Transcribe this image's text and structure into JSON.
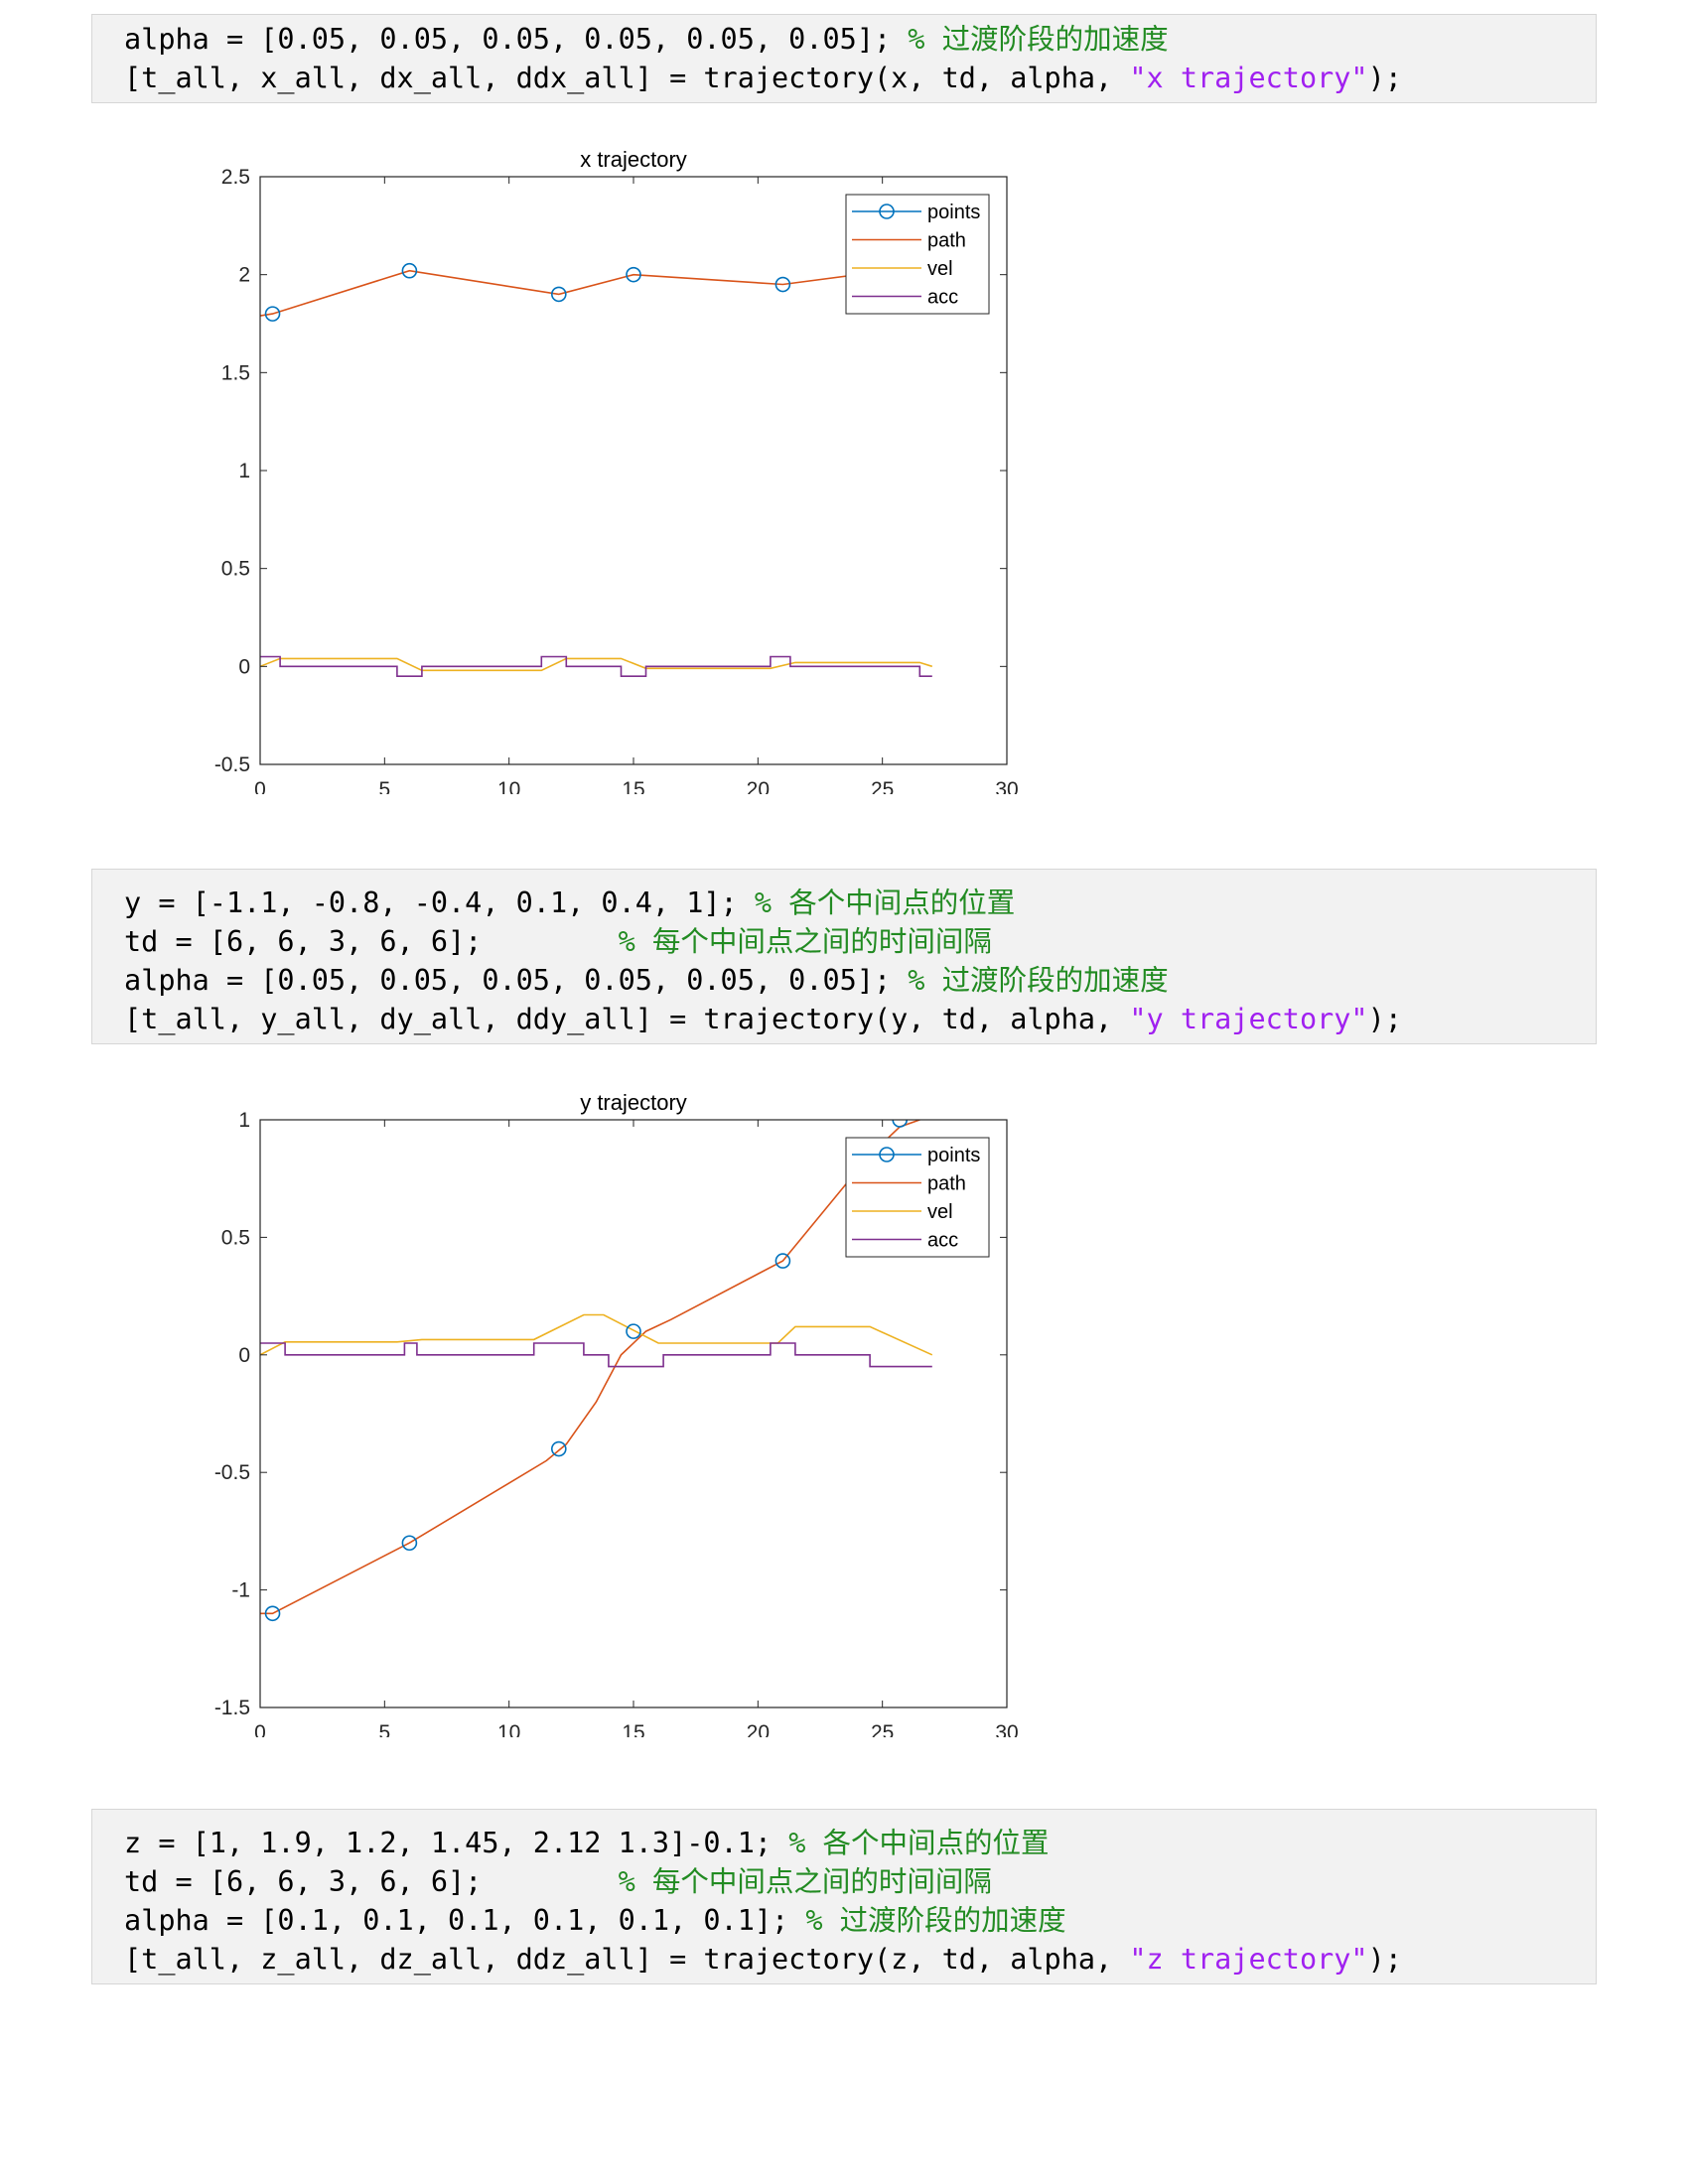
{
  "code_blocks": [
    {
      "lines": [
        {
          "code": "alpha = [0.05, 0.05, 0.05, 0.05, 0.05, 0.05]; ",
          "comment": "% 过渡阶段的加速度"
        },
        {
          "code": "[t_all, x_all, dx_all, ddx_all] = trajectory(x, td, alpha, ",
          "string": "\"x trajectory\"",
          "tail": ");"
        }
      ]
    },
    {
      "lines": [
        {
          "code": "y = [-1.1, -0.8, -0.4, 0.1, 0.4, 1]; ",
          "comment": "% 各个中间点的位置"
        },
        {
          "code": "td = [6, 6, 3, 6, 6];        ",
          "comment": "% 每个中间点之间的时间间隔"
        },
        {
          "code": "alpha = [0.05, 0.05, 0.05, 0.05, 0.05, 0.05]; ",
          "comment": "% 过渡阶段的加速度"
        },
        {
          "code": "[t_all, y_all, dy_all, ddy_all] = trajectory(y, td, alpha, ",
          "string": "\"y trajectory\"",
          "tail": ");"
        }
      ]
    },
    {
      "lines": [
        {
          "code": "z = [1, 1.9, 1.2, 1.45, 2.12 1.3]-0.1; ",
          "comment": "% 各个中间点的位置"
        },
        {
          "code": "td = [6, 6, 3, 6, 6];        ",
          "comment": "% 每个中间点之间的时间间隔"
        },
        {
          "code": "alpha = [0.1, 0.1, 0.1, 0.1, 0.1, 0.1]; ",
          "comment": "% 过渡阶段的加速度"
        },
        {
          "code": "[t_all, z_all, dz_all, ddz_all] = trajectory(z, td, alpha, ",
          "string": "\"z trajectory\"",
          "tail": ");"
        }
      ]
    }
  ],
  "chart_data": [
    {
      "type": "line",
      "title": "x trajectory",
      "xlabel": "",
      "ylabel": "",
      "xlim": [
        0,
        30
      ],
      "ylim": [
        -0.5,
        2.5
      ],
      "xticks": [
        0,
        5,
        10,
        15,
        20,
        25,
        30
      ],
      "xtick_labels": [
        "0",
        "5",
        "10",
        "15",
        "20",
        "25",
        "30"
      ],
      "yticks": [
        -0.5,
        0,
        0.5,
        1,
        1.5,
        2,
        2.5
      ],
      "ytick_labels": [
        "-0.5",
        "0",
        "0.5",
        "1",
        "1.5",
        "2",
        "2.5"
      ],
      "legend_position": "top-right",
      "grid": false,
      "series": [
        {
          "name": "points",
          "color": "#0072bd",
          "marker": "circle",
          "line": false,
          "points": [
            [
              0.5,
              1.8
            ],
            [
              6,
              2.02
            ],
            [
              12,
              1.9
            ],
            [
              15,
              2.0
            ],
            [
              21,
              1.95
            ],
            [
              27,
              2.05
            ]
          ]
        },
        {
          "name": "path",
          "color": "#d95319",
          "marker": "none",
          "line": true,
          "points": [
            [
              0,
              1.79
            ],
            [
              0.5,
              1.8
            ],
            [
              6,
              2.02
            ],
            [
              12,
              1.9
            ],
            [
              15,
              2.0
            ],
            [
              21,
              1.95
            ],
            [
              27,
              2.05
            ]
          ]
        },
        {
          "name": "vel",
          "color": "#edb120",
          "marker": "none",
          "line": true,
          "points": [
            [
              0,
              0.0
            ],
            [
              0.8,
              0.04
            ],
            [
              5.5,
              0.04
            ],
            [
              6.5,
              -0.02
            ],
            [
              11.3,
              -0.02
            ],
            [
              12.3,
              0.04
            ],
            [
              14.5,
              0.04
            ],
            [
              15.5,
              -0.01
            ],
            [
              20.5,
              -0.01
            ],
            [
              21.5,
              0.02
            ],
            [
              26.5,
              0.02
            ],
            [
              27,
              0.0
            ]
          ]
        },
        {
          "name": "acc",
          "color": "#7e2f8e",
          "marker": "none",
          "line": true,
          "points": [
            [
              0,
              0.05
            ],
            [
              0.8,
              0.05
            ],
            [
              0.8,
              0.0
            ],
            [
              5.5,
              0.0
            ],
            [
              5.5,
              -0.05
            ],
            [
              6.5,
              -0.05
            ],
            [
              6.5,
              0.0
            ],
            [
              11.3,
              0.0
            ],
            [
              11.3,
              0.05
            ],
            [
              12.3,
              0.05
            ],
            [
              12.3,
              0.0
            ],
            [
              14.5,
              0.0
            ],
            [
              14.5,
              -0.05
            ],
            [
              15.5,
              -0.05
            ],
            [
              15.5,
              0.0
            ],
            [
              20.5,
              0.0
            ],
            [
              20.5,
              0.05
            ],
            [
              21.3,
              0.05
            ],
            [
              21.3,
              0.0
            ],
            [
              26.5,
              0.0
            ],
            [
              26.5,
              -0.05
            ],
            [
              27,
              -0.05
            ]
          ]
        }
      ]
    },
    {
      "type": "line",
      "title": "y trajectory",
      "xlabel": "",
      "ylabel": "",
      "xlim": [
        0,
        30
      ],
      "ylim": [
        -1.5,
        1
      ],
      "xticks": [
        0,
        5,
        10,
        15,
        20,
        25,
        30
      ],
      "xtick_labels": [
        "0",
        "5",
        "10",
        "15",
        "20",
        "25",
        "30"
      ],
      "yticks": [
        -1.5,
        -1,
        -0.5,
        0,
        0.5,
        1
      ],
      "ytick_labels": [
        "-1.5",
        "-1",
        "-0.5",
        "0",
        "0.5",
        "1"
      ],
      "legend_position": "top-right",
      "grid": false,
      "series": [
        {
          "name": "points",
          "color": "#0072bd",
          "marker": "circle",
          "line": false,
          "points": [
            [
              0.5,
              -1.1
            ],
            [
              6,
              -0.8
            ],
            [
              12,
              -0.4
            ],
            [
              15,
              0.1
            ],
            [
              21,
              0.4
            ],
            [
              25.7,
              1.0
            ]
          ]
        },
        {
          "name": "path",
          "color": "#d95319",
          "marker": "none",
          "line": true,
          "points": [
            [
              0,
              -1.1
            ],
            [
              0.5,
              -1.1
            ],
            [
              6,
              -0.8
            ],
            [
              11.5,
              -0.45
            ],
            [
              12.3,
              -0.38
            ],
            [
              13.5,
              -0.2
            ],
            [
              14.5,
              0.0
            ],
            [
              15.5,
              0.1
            ],
            [
              16.5,
              0.15
            ],
            [
              21,
              0.4
            ],
            [
              24.5,
              0.85
            ],
            [
              25.7,
              0.97
            ],
            [
              26.5,
              1.0
            ]
          ]
        },
        {
          "name": "vel",
          "color": "#edb120",
          "marker": "none",
          "line": true,
          "points": [
            [
              0,
              0.0
            ],
            [
              1,
              0.055
            ],
            [
              5.5,
              0.055
            ],
            [
              6.5,
              0.065
            ],
            [
              11,
              0.065
            ],
            [
              13,
              0.17
            ],
            [
              13.8,
              0.17
            ],
            [
              16,
              0.05
            ],
            [
              20.8,
              0.05
            ],
            [
              21.5,
              0.12
            ],
            [
              24.5,
              0.12
            ],
            [
              27,
              0.0
            ]
          ]
        },
        {
          "name": "acc",
          "color": "#7e2f8e",
          "marker": "none",
          "line": true,
          "points": [
            [
              0,
              0.05
            ],
            [
              1,
              0.05
            ],
            [
              1,
              0.0
            ],
            [
              5.8,
              0.0
            ],
            [
              5.8,
              0.05
            ],
            [
              6.3,
              0.05
            ],
            [
              6.3,
              0.0
            ],
            [
              11,
              0.0
            ],
            [
              11,
              0.05
            ],
            [
              13,
              0.05
            ],
            [
              13,
              0.0
            ],
            [
              14,
              0.0
            ],
            [
              14,
              -0.05
            ],
            [
              16.2,
              -0.05
            ],
            [
              16.2,
              0.0
            ],
            [
              20.5,
              0.0
            ],
            [
              20.5,
              0.05
            ],
            [
              21.5,
              0.05
            ],
            [
              21.5,
              0.0
            ],
            [
              24.5,
              0.0
            ],
            [
              24.5,
              -0.05
            ],
            [
              27,
              -0.05
            ]
          ]
        }
      ]
    }
  ]
}
